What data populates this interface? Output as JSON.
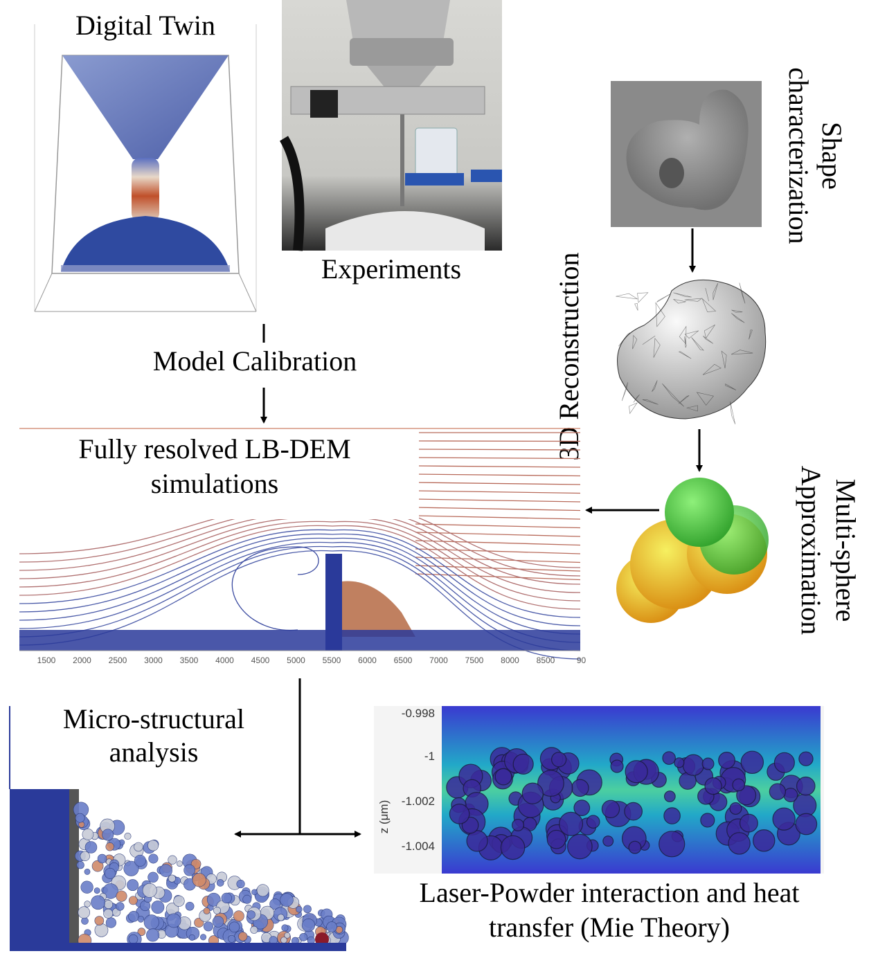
{
  "panels": {
    "digital_twin": {
      "label": "Digital Twin"
    },
    "experiments": {
      "label": "Experiments"
    },
    "shape_characterization": {
      "lines": [
        "Shape",
        "characterization"
      ]
    },
    "reconstruction": {
      "label": "3D Reconstruction"
    },
    "multi_sphere": {
      "lines": [
        "Multi-sphere",
        "Approximation"
      ]
    },
    "model_calibration": {
      "label": "Model Calibration"
    },
    "lb_dem": {
      "lines": [
        "Fully resolved LB-DEM",
        "simulations"
      ],
      "x_ticks": [
        "1500",
        "2000",
        "2500",
        "3000",
        "3500",
        "4000",
        "4500",
        "5000",
        "5500",
        "6000",
        "6500",
        "7000",
        "7500",
        "8000",
        "8500",
        "90"
      ]
    },
    "micro_structural": {
      "lines": [
        "Micro-structural",
        "analysis"
      ]
    },
    "laser": {
      "lines": [
        "Laser-Powder interaction and heat",
        "transfer (Mie Theory)"
      ],
      "y_ticks": [
        "-0.998",
        "-1",
        "-1.002",
        "-1.004"
      ],
      "y_label": "z (μm)"
    }
  }
}
